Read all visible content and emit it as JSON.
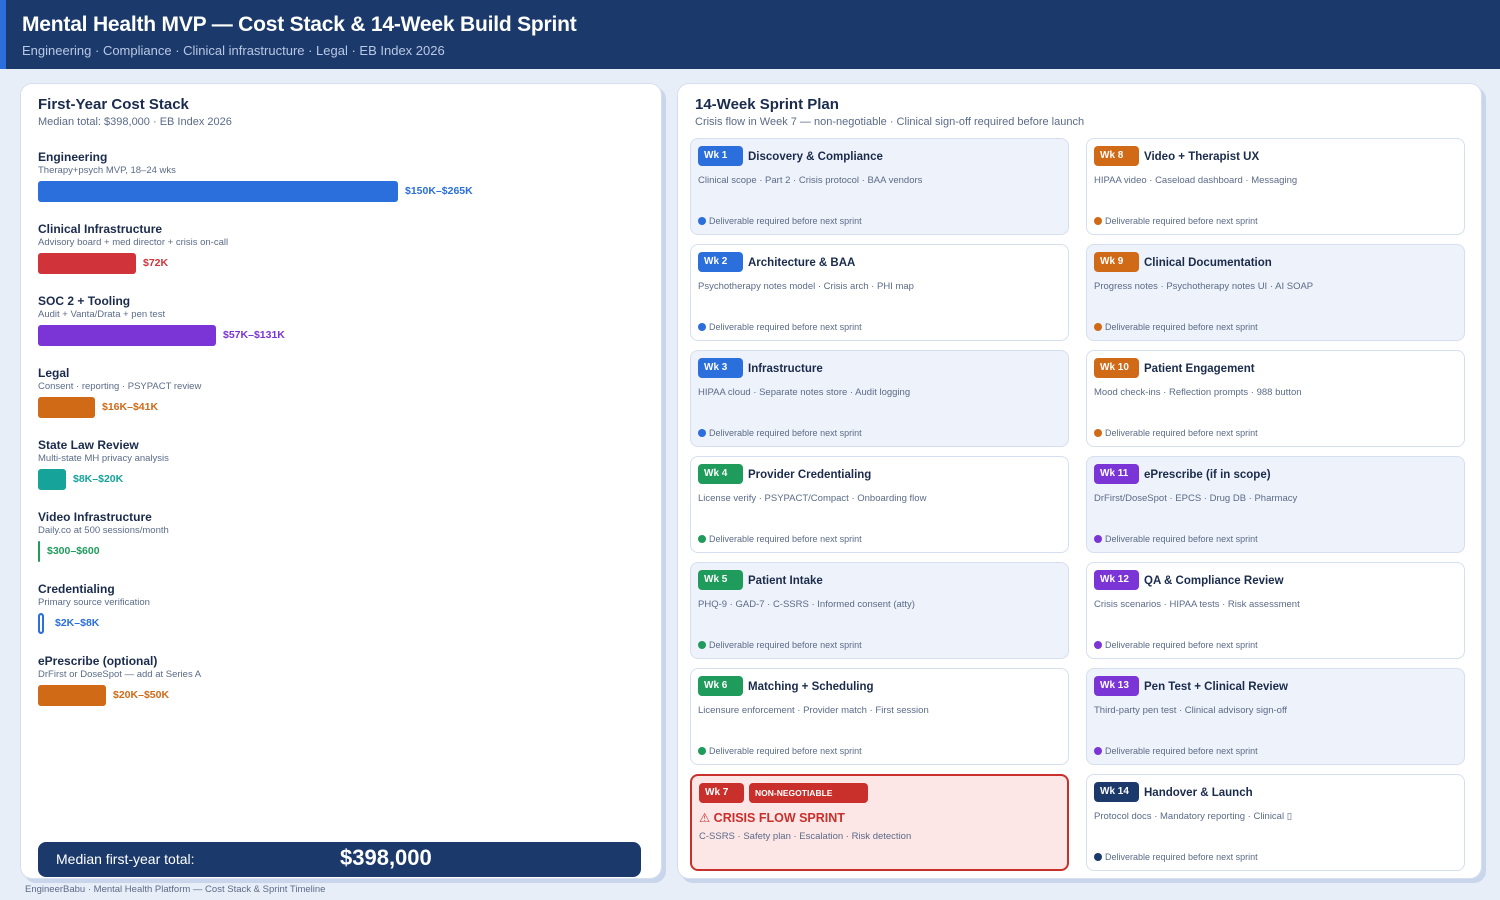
{
  "header": {
    "title": "Mental Health MVP — Cost Stack & 14-Week Build Sprint",
    "subtitle": "Engineering · Compliance · Clinical infrastructure · Legal · EB Index 2026"
  },
  "cost_panel": {
    "title": "First-Year Cost Stack",
    "subtitle": "Median total: $398,000  ·  EB Index 2026",
    "items": [
      {
        "name": "Engineering",
        "desc": "Therapy+psych MVP, 18–24 wks",
        "value": "$150K–$265K",
        "color": "#2a6fdb",
        "bar_fraction": 0.585
      },
      {
        "name": "Clinical Infrastructure",
        "desc": "Advisory board + med director + crisis on-call",
        "value": "$72K",
        "color": "#d0343a",
        "bar_fraction": 0.16
      },
      {
        "name": "SOC 2 + Tooling",
        "desc": "Audit + Vanta/Drata + pen test",
        "value": "$57K–$131K",
        "color": "#7b35d6",
        "bar_fraction": 0.29
      },
      {
        "name": "Legal",
        "desc": "Consent · reporting · PSYPACT review",
        "value": "$16K–$41K",
        "color": "#d06a17",
        "bar_fraction": 0.092
      },
      {
        "name": "State Law Review",
        "desc": "Multi-state MH privacy analysis",
        "value": "$8K–$20K",
        "color": "#15a39a",
        "bar_fraction": 0.046
      },
      {
        "name": "Video Infrastructure",
        "desc": "Daily.co at 500 sessions/month",
        "value": "$300–$600",
        "color": "#1f9b5c",
        "bar_fraction": 0.003
      },
      {
        "name": "Credentialing",
        "desc": "Primary source verification",
        "value": "$2K–$8K",
        "color": "#2a6fdb",
        "bar_fraction": 0.016
      },
      {
        "name": "ePrescribe (optional)",
        "desc": "DrFirst or DoseSpot — add at Series A",
        "value": "$20K–$50K",
        "color": "#d06a17",
        "bar_fraction": 0.11
      }
    ],
    "total_label": "Median first-year total:",
    "total_value": "$398,000"
  },
  "sprint_panel": {
    "title": "14-Week Sprint Plan",
    "subtitle": "Crisis flow in Week 7 — non-negotiable · Clinical sign-off required before launch",
    "deliverable_text": "Deliverable required before next sprint",
    "non_negotiable_label": "NON-NEGOTIABLE",
    "weeks": [
      {
        "wk": "Wk 1",
        "title": "Discovery & Compliance",
        "desc": "Clinical scope · Part 2 · Crisis protocol · BAA vendors",
        "color": "#2a6fdb"
      },
      {
        "wk": "Wk 2",
        "title": "Architecture & BAA",
        "desc": "Psychotherapy notes model · Crisis arch · PHI map",
        "color": "#2a6fdb"
      },
      {
        "wk": "Wk 3",
        "title": "Infrastructure",
        "desc": "HIPAA cloud · Separate notes store · Audit logging",
        "color": "#2a6fdb"
      },
      {
        "wk": "Wk 4",
        "title": "Provider Credentialing",
        "desc": "License verify · PSYPACT/Compact · Onboarding flow",
        "color": "#1f9b5c"
      },
      {
        "wk": "Wk 5",
        "title": "Patient Intake",
        "desc": "PHQ-9 · GAD-7 · C-SSRS · Informed consent (atty)",
        "color": "#1f9b5c"
      },
      {
        "wk": "Wk 6",
        "title": "Matching + Scheduling",
        "desc": "Licensure enforcement · Provider match · First session",
        "color": "#1f9b5c"
      },
      {
        "wk": "Wk 7",
        "title": "⚠ CRISIS FLOW SPRINT",
        "desc": "C-SSRS · Safety plan · Escalation · Risk detection",
        "color": "#c9302c"
      },
      {
        "wk": "Wk 8",
        "title": "Video + Therapist UX",
        "desc": "HIPAA video · Caseload dashboard · Messaging",
        "color": "#d06a17"
      },
      {
        "wk": "Wk 9",
        "title": "Clinical Documentation",
        "desc": "Progress notes · Psychotherapy notes UI · AI SOAP",
        "color": "#d06a17"
      },
      {
        "wk": "Wk 10",
        "title": "Patient Engagement",
        "desc": "Mood check-ins · Reflection prompts · 988 button",
        "color": "#d06a17"
      },
      {
        "wk": "Wk 11",
        "title": "ePrescribe (if in scope)",
        "desc": "DrFirst/DoseSpot · EPCS · Drug DB · Pharmacy",
        "color": "#7b35d6"
      },
      {
        "wk": "Wk 12",
        "title": "QA & Compliance Review",
        "desc": "Crisis scenarios · HIPAA tests · Risk assessment",
        "color": "#7b35d6"
      },
      {
        "wk": "Wk 13",
        "title": "Pen Test + Clinical Review",
        "desc": "Third-party pen test · Clinical advisory sign-off",
        "color": "#7b35d6"
      },
      {
        "wk": "Wk 14",
        "title": "Handover & Launch",
        "desc": "Protocol docs · Mandatory reporting · Clinical ▯",
        "color": "#1b3a6b"
      }
    ]
  },
  "footer": "EngineerBabu · Mental Health Platform — Cost Stack & Sprint Timeline"
}
